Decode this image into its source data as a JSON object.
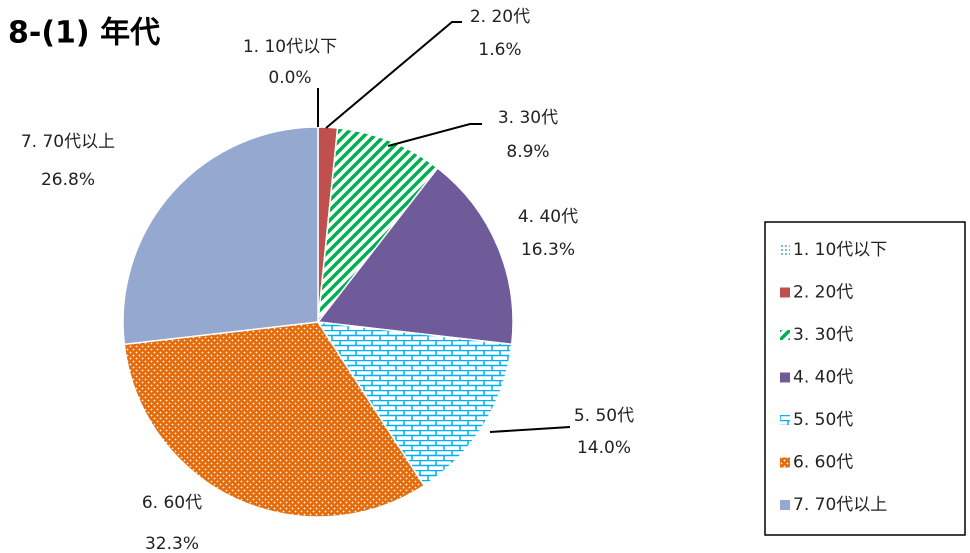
{
  "chart_data": {
    "type": "pie",
    "title": "8-(1) 年代",
    "categories": [
      "1. 10代以下",
      "2. 20代",
      "3. 30代",
      "4. 40代",
      "5. 50代",
      "6. 60代",
      "7. 70代以上"
    ],
    "values": [
      0,
      1.6,
      8.9,
      16.3,
      14,
      32.3,
      26.8
    ],
    "value_labels": [
      "0.0%",
      "1.6%",
      "8.9%",
      "16.3%",
      "14.0%",
      "32.3%",
      "26.8%"
    ],
    "colors": [
      "#4bacc6",
      "#c0504d",
      "#00b050",
      "#6f5b9a",
      "#00b0f0",
      "#e46c0a",
      "#95a8d0"
    ],
    "legend": "right"
  }
}
